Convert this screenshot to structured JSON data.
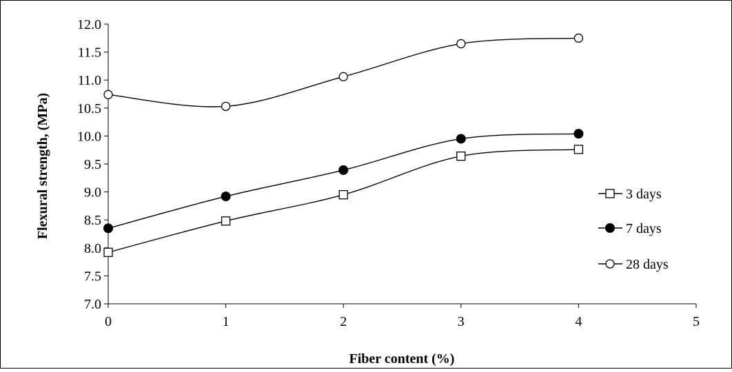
{
  "chart_data": {
    "type": "line",
    "title": "",
    "xlabel": "Fiber content (%)",
    "ylabel": "Flexural strength, (MPa)",
    "xlim": [
      0,
      5
    ],
    "ylim": [
      7.0,
      12.0
    ],
    "x_ticks": [
      "0",
      "1",
      "2",
      "3",
      "4",
      "5"
    ],
    "y_ticks": [
      "7.0",
      "7.5",
      "8.0",
      "8.5",
      "9.0",
      "9.5",
      "10.0",
      "10.5",
      "11.0",
      "11.5",
      "12.0"
    ],
    "grid": false,
    "smooth": true,
    "legend_position": "right",
    "series": [
      {
        "name": "3 days",
        "marker": "open-square",
        "x": [
          0,
          1,
          2,
          3,
          4
        ],
        "values": [
          7.92,
          8.48,
          8.95,
          9.64,
          9.76
        ]
      },
      {
        "name": "7 days",
        "marker": "filled-circle",
        "x": [
          0,
          1,
          2,
          3,
          4
        ],
        "values": [
          8.35,
          8.92,
          9.39,
          9.95,
          10.04
        ]
      },
      {
        "name": "28 days",
        "marker": "open-circle",
        "x": [
          0,
          1,
          2,
          3,
          4
        ],
        "values": [
          10.74,
          10.53,
          11.06,
          11.65,
          11.75
        ]
      }
    ]
  }
}
